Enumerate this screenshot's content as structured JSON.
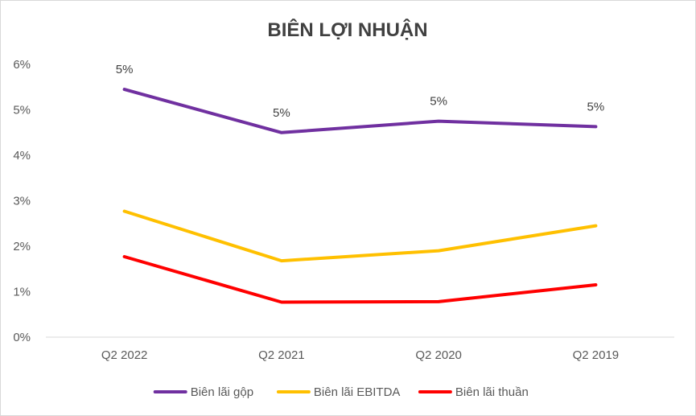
{
  "chart_data": {
    "type": "line",
    "title": "BIÊN LỢI NHUẬN",
    "categories": [
      "Q2 2022",
      "Q2 2021",
      "Q2 2020",
      "Q2 2019"
    ],
    "ylim": [
      0,
      6
    ],
    "yticks": [
      0,
      1,
      2,
      3,
      4,
      5,
      6
    ],
    "ytick_labels": [
      "0%",
      "1%",
      "2%",
      "3%",
      "4%",
      "5%",
      "6%"
    ],
    "grid": false,
    "legend_position": "bottom",
    "series": [
      {
        "name": "Biên lãi gộp",
        "color": "#7030a0",
        "values": [
          5.45,
          4.5,
          4.75,
          4.63
        ],
        "data_labels": [
          "5%",
          "5%",
          "5%",
          "5%"
        ]
      },
      {
        "name": "Biên lãi EBITDA",
        "color": "#ffc000",
        "values": [
          2.77,
          1.68,
          1.9,
          2.45
        ],
        "data_labels": []
      },
      {
        "name": "Biên lãi thuần",
        "color": "#ff0000",
        "values": [
          1.77,
          0.77,
          0.78,
          1.15
        ],
        "data_labels": []
      }
    ]
  }
}
